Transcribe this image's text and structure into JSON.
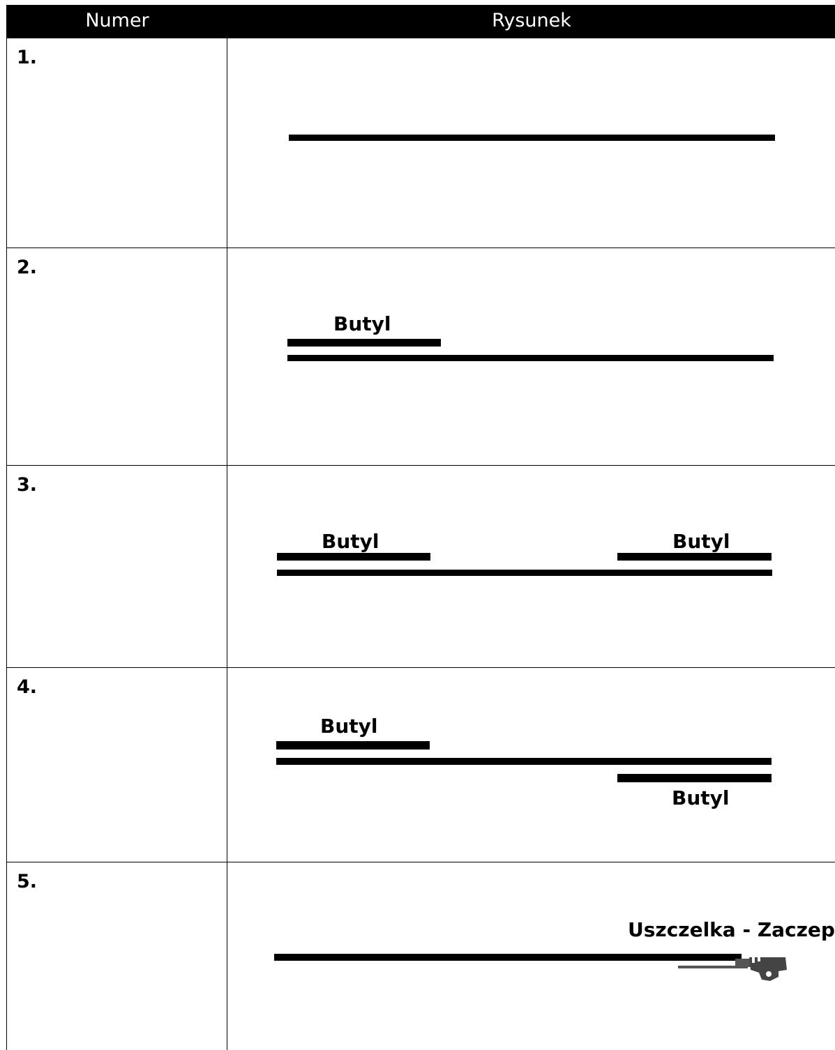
{
  "table": {
    "headers": {
      "number": "Numer",
      "drawing": "Rysunek"
    },
    "rows": [
      {
        "number": "1."
      },
      {
        "number": "2.",
        "label": "Butyl"
      },
      {
        "number": "3.",
        "label_left": "Butyl",
        "label_right": "Butyl"
      },
      {
        "number": "4.",
        "label_top": "Butyl",
        "label_bottom": "Butyl"
      },
      {
        "number": "5.",
        "label": "Uszczelka - Zaczep"
      }
    ]
  }
}
